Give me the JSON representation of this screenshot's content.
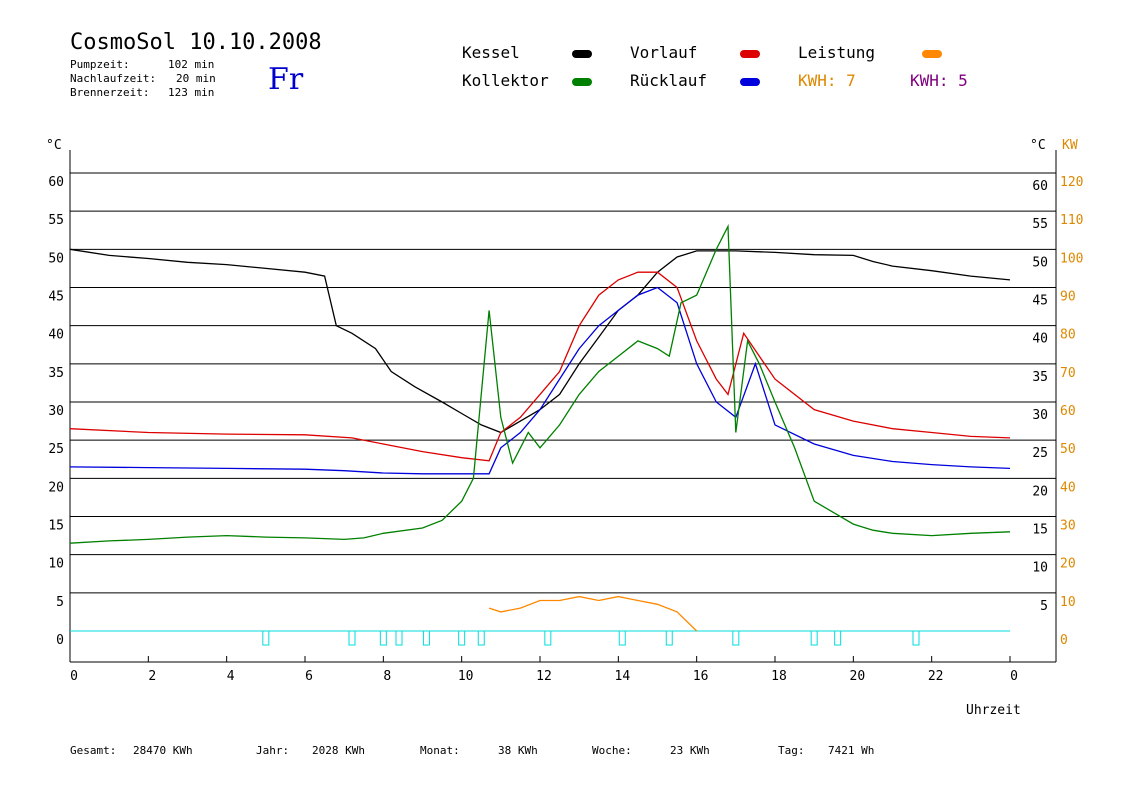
{
  "header": {
    "title": "CosmoSol 10.10.2008",
    "weekday": "Fr",
    "pump_label": "Pumpzeit:",
    "pump_value": "102 min",
    "after_label": "Nachlaufzeit:",
    "after_value": "20 min",
    "burner_label": "Brennerzeit:",
    "burner_value": "123 min"
  },
  "legend": {
    "kessel": "Kessel",
    "kollektor": "Kollektor",
    "vorlauf": "Vorlauf",
    "ruecklauf": "Rücklauf",
    "leistung": "Leistung",
    "kwh1": "KWH: 7",
    "kwh2": "KWH: 5",
    "colors": {
      "kessel": "#000000",
      "kollektor": "#008000",
      "vorlauf": "#dd0000",
      "ruecklauf": "#0000dd",
      "leistung": "#ff8800",
      "kwh1": "#dd8800",
      "kwh2": "#800080",
      "pump": "#00dddd",
      "grid": "#000000"
    }
  },
  "footer": {
    "gesamt_label": "Gesamt:",
    "gesamt_value": "28470 KWh",
    "jahr_label": "Jahr:",
    "jahr_value": "2028 KWh",
    "monat_label": "Monat:",
    "monat_value": "38 KWh",
    "woche_label": "Woche:",
    "woche_value": "23 KWh",
    "tag_label": "Tag:",
    "tag_value": "7421 Wh"
  },
  "chart_data": {
    "type": "line",
    "xlabel": "Uhrzeit",
    "ylabel_left": "°C",
    "ylabel_right": "°C",
    "ylabel_kw": "KW",
    "xlim": [
      0,
      24
    ],
    "ylim": [
      0,
      60
    ],
    "kw_lim": [
      0,
      120
    ],
    "x_ticks": [
      "0",
      "2",
      "4",
      "6",
      "8",
      "10",
      "12",
      "14",
      "16",
      "18",
      "20",
      "22",
      "0"
    ],
    "y_ticks_left": [
      "0",
      "5",
      "10",
      "15",
      "20",
      "25",
      "30",
      "35",
      "40",
      "45",
      "50",
      "55",
      "60"
    ],
    "y_ticks_right": [
      "5",
      "10",
      "15",
      "20",
      "25",
      "30",
      "35",
      "40",
      "45",
      "50",
      "55",
      "60"
    ],
    "kw_ticks": [
      "0",
      "10",
      "20",
      "30",
      "40",
      "50",
      "60",
      "70",
      "80",
      "90",
      "100",
      "110",
      "120"
    ],
    "grid": "horizontal",
    "series": [
      {
        "name": "Kessel",
        "color": "#000000",
        "x": [
          0,
          1,
          2,
          3,
          4,
          5,
          6,
          6.5,
          6.8,
          7.2,
          7.8,
          8.2,
          8.8,
          9.5,
          10.0,
          10.5,
          11.0,
          11.5,
          12.0,
          12.5,
          13.0,
          13.5,
          14.0,
          14.5,
          15.0,
          15.5,
          16.0,
          16.5,
          17.0,
          18.0,
          19.0,
          20.0,
          20.5,
          21.0,
          22.0,
          23.0,
          24.0
        ],
        "y": [
          50,
          49.2,
          48.8,
          48.3,
          48.0,
          47.5,
          47.0,
          46.5,
          40,
          39,
          37,
          34,
          32,
          30,
          28.5,
          27,
          26,
          27.5,
          29,
          31,
          35,
          38.5,
          42,
          44,
          47,
          49,
          49.8,
          49.8,
          49.8,
          49.6,
          49.3,
          49.2,
          48.4,
          47.8,
          47.2,
          46.5,
          46
        ]
      },
      {
        "name": "Vorlauf",
        "color": "#dd0000",
        "x": [
          0,
          2,
          4,
          6,
          7.2,
          8,
          9,
          10,
          10.7,
          11,
          11.5,
          12,
          12.5,
          13,
          13.5,
          14,
          14.5,
          15,
          15.5,
          16,
          16.5,
          16.8,
          17.2,
          18,
          19,
          20,
          21,
          22,
          23,
          24
        ],
        "y": [
          26.5,
          26,
          25.8,
          25.7,
          25.3,
          24.5,
          23.5,
          22.7,
          22.3,
          26,
          28,
          31,
          34,
          40,
          44,
          46,
          47,
          47,
          45,
          38,
          33,
          31,
          39,
          33,
          29,
          27.5,
          26.5,
          26,
          25.5,
          25.3
        ]
      },
      {
        "name": "Rücklauf",
        "color": "#0000dd",
        "x": [
          0,
          2,
          4,
          6,
          7,
          8,
          9,
          10,
          10.7,
          11,
          11.5,
          12,
          12.5,
          13,
          13.5,
          14,
          14.5,
          15,
          15.5,
          16,
          16.5,
          17,
          17.5,
          18,
          19,
          20,
          21,
          22,
          23,
          24
        ],
        "y": [
          21.5,
          21.4,
          21.3,
          21.2,
          21.0,
          20.7,
          20.6,
          20.6,
          20.6,
          24,
          26,
          29,
          33,
          37,
          40,
          42,
          44,
          45,
          43,
          35,
          30,
          28,
          35,
          27,
          24.5,
          23,
          22.2,
          21.8,
          21.5,
          21.3
        ]
      },
      {
        "name": "Kollektor",
        "color": "#008000",
        "x": [
          0,
          1,
          2,
          3,
          4,
          5,
          6,
          7,
          7.5,
          8,
          9,
          9.5,
          10,
          10.3,
          10.7,
          11,
          11.3,
          11.7,
          12,
          12.5,
          13,
          13.5,
          14,
          14.5,
          15,
          15.3,
          15.6,
          16,
          16.5,
          16.8,
          17.0,
          17.3,
          17.6,
          18,
          18.5,
          19,
          19.5,
          20,
          20.5,
          21,
          22,
          23,
          24
        ],
        "y": [
          11.5,
          11.8,
          12,
          12.3,
          12.5,
          12.3,
          12.2,
          12,
          12.2,
          12.8,
          13.5,
          14.5,
          17,
          20,
          42,
          28,
          22,
          26,
          24,
          27,
          31,
          34,
          36,
          38,
          37,
          36,
          43,
          44,
          50,
          53,
          26,
          38,
          35,
          30,
          24,
          17,
          15.5,
          14,
          13.2,
          12.8,
          12.5,
          12.8,
          13
        ]
      },
      {
        "name": "Leistung",
        "color": "#ff8800",
        "x": [
          10.7,
          11,
          11.5,
          12,
          12.5,
          13,
          13.5,
          14,
          14.5,
          15,
          15.5,
          16
        ],
        "y": [
          3,
          2.5,
          3,
          4,
          4,
          4.5,
          4,
          4.5,
          4,
          3.5,
          2.5,
          0
        ]
      }
    ],
    "pump_markers_x": [
      5.0,
      7.2,
      8.0,
      8.4,
      9.1,
      10.0,
      10.5,
      12.2,
      14.1,
      15.3,
      17.0,
      19.0,
      19.6,
      21.6
    ]
  }
}
